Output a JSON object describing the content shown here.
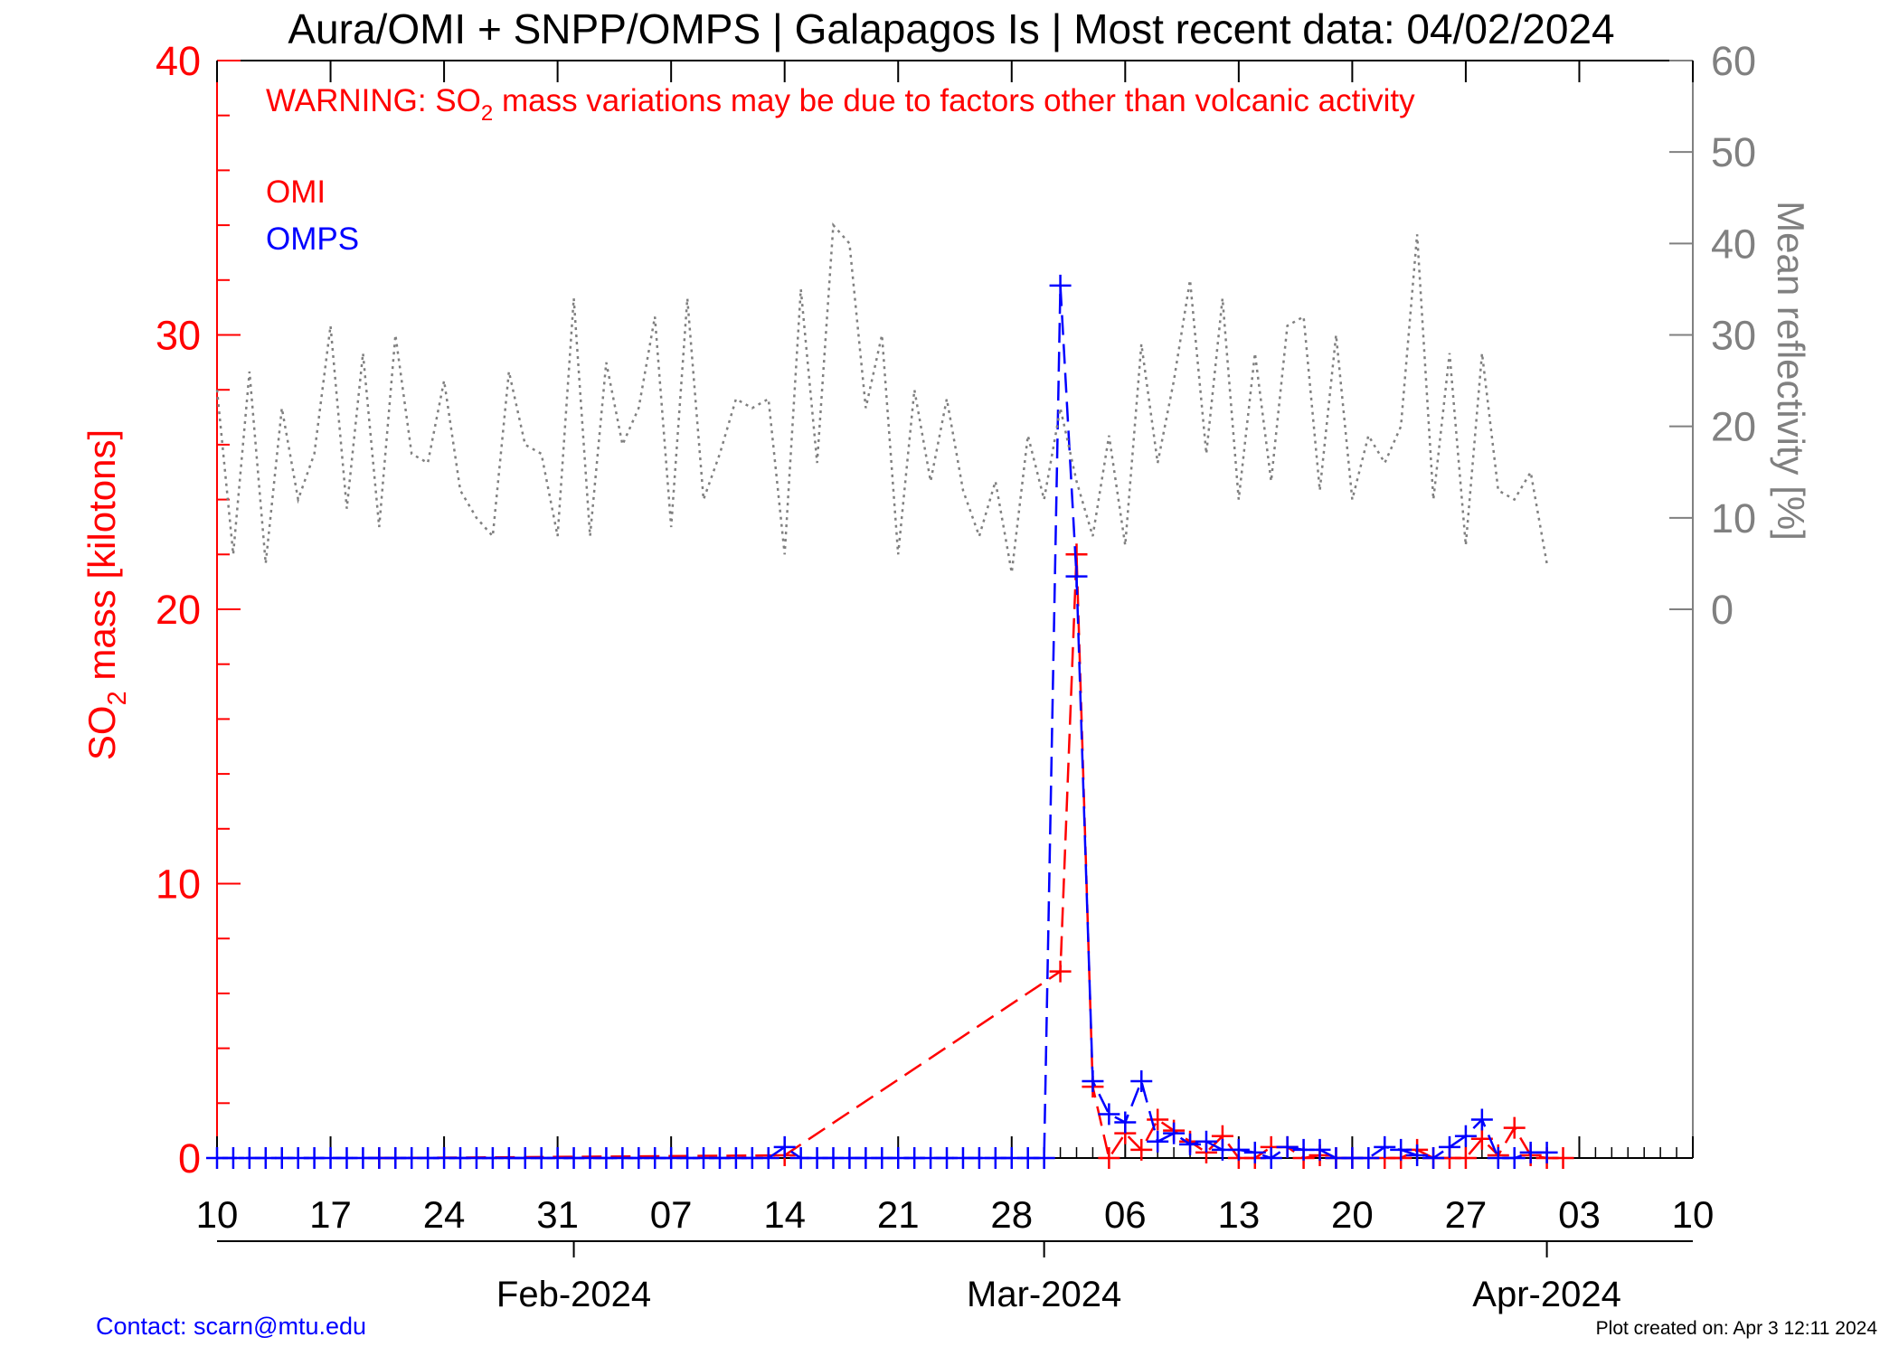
{
  "title": "Aura/OMI + SNPP/OMPS | Galapagos Is | Most recent data: 04/02/2024",
  "warning": {
    "prefix": "WARNING: SO",
    "subscript": "2",
    "suffix": " mass variations may be due to factors other than volcanic activity"
  },
  "footer": {
    "contact": "Contact: scarn@mtu.edu",
    "created": "Plot created on: Apr  3 12:11 2024"
  },
  "colors": {
    "omi": "#ff0000",
    "omps": "#0000ff",
    "reflectivity": "#808080",
    "axis": "#000000"
  },
  "chart_data": {
    "type": "line",
    "left_axis": {
      "label_prefix": "SO",
      "label_subscript": "2",
      "label_suffix": " mass [kilotons]",
      "range": [
        0,
        40
      ],
      "ticks": [
        "0",
        "10",
        "20",
        "30",
        "40"
      ],
      "color": "#ff0000"
    },
    "right_axis": {
      "label": "Mean reflectivity [%]",
      "range": [
        -60,
        60
      ],
      "ticks": [
        "0",
        "10",
        "20",
        "30",
        "40",
        "50",
        "60"
      ],
      "color": "#808080"
    },
    "x_axis": {
      "range": [
        "2024-01-10",
        "2024-04-10"
      ],
      "tick_labels": [
        "10",
        "17",
        "24",
        "31",
        "07",
        "14",
        "21",
        "28",
        "06",
        "13",
        "20",
        "27",
        "03",
        "10"
      ],
      "tick_dates": [
        "2024-01-10",
        "2024-01-17",
        "2024-01-24",
        "2024-01-31",
        "2024-02-07",
        "2024-02-14",
        "2024-02-21",
        "2024-02-28",
        "2024-03-06",
        "2024-03-13",
        "2024-03-20",
        "2024-03-27",
        "2024-04-03",
        "2024-04-10"
      ],
      "months": [
        {
          "label": "Feb-2024",
          "date": "2024-02-01"
        },
        {
          "label": "Mar-2024",
          "date": "2024-03-01"
        },
        {
          "label": "Apr-2024",
          "date": "2024-04-01"
        }
      ]
    },
    "legend": [
      "OMI",
      "OMPS"
    ],
    "legend_position": "top-left",
    "series": [
      {
        "name": "OMI",
        "axis": "left",
        "style": "dashed",
        "marker": "plus",
        "color": "#ff0000",
        "points": [
          {
            "date": "2024-01-20",
            "value": 0
          },
          {
            "date": "2024-01-21",
            "value": 0
          },
          {
            "date": "2024-02-14",
            "value": 0.1
          },
          {
            "date": "2024-03-02",
            "value": 6.8
          },
          {
            "date": "2024-03-03",
            "value": 22
          },
          {
            "date": "2024-03-04",
            "value": 2.6
          },
          {
            "date": "2024-03-05",
            "value": 0
          },
          {
            "date": "2024-03-06",
            "value": 0.9
          },
          {
            "date": "2024-03-07",
            "value": 0.3
          },
          {
            "date": "2024-03-08",
            "value": 1.4
          },
          {
            "date": "2024-03-09",
            "value": 1
          },
          {
            "date": "2024-03-10",
            "value": 0.6
          },
          {
            "date": "2024-03-11",
            "value": 0.2
          },
          {
            "date": "2024-03-12",
            "value": 0.8
          },
          {
            "date": "2024-03-13",
            "value": 0
          },
          {
            "date": "2024-03-14",
            "value": 0
          },
          {
            "date": "2024-03-15",
            "value": 0.4
          },
          {
            "date": "2024-03-16",
            "value": 0.4
          },
          {
            "date": "2024-03-17",
            "value": 0
          },
          {
            "date": "2024-03-18",
            "value": 0.1
          },
          {
            "date": "2024-03-19",
            "value": 0
          },
          {
            "date": "2024-03-20",
            "value": 0
          },
          {
            "date": "2024-03-22",
            "value": 0
          },
          {
            "date": "2024-03-23",
            "value": 0
          },
          {
            "date": "2024-03-24",
            "value": 0.3
          },
          {
            "date": "2024-03-25",
            "value": 0
          },
          {
            "date": "2024-03-26",
            "value": 0
          },
          {
            "date": "2024-03-27",
            "value": 0
          },
          {
            "date": "2024-03-28",
            "value": 0.7
          },
          {
            "date": "2024-03-29",
            "value": 0.1
          },
          {
            "date": "2024-03-30",
            "value": 1.1
          },
          {
            "date": "2024-03-31",
            "value": 0.1
          },
          {
            "date": "2024-04-01",
            "value": 0
          },
          {
            "date": "2024-04-02",
            "value": 0
          }
        ]
      },
      {
        "name": "OMPS",
        "axis": "left",
        "style": "dashed",
        "marker": "plus",
        "color": "#0000ff",
        "points": [
          {
            "date": "2024-01-10",
            "value": 0
          },
          {
            "date": "2024-01-11",
            "value": 0
          },
          {
            "date": "2024-01-12",
            "value": 0
          },
          {
            "date": "2024-01-13",
            "value": 0
          },
          {
            "date": "2024-01-14",
            "value": 0
          },
          {
            "date": "2024-01-15",
            "value": 0
          },
          {
            "date": "2024-01-16",
            "value": 0
          },
          {
            "date": "2024-01-17",
            "value": 0
          },
          {
            "date": "2024-01-18",
            "value": 0
          },
          {
            "date": "2024-01-19",
            "value": 0
          },
          {
            "date": "2024-01-20",
            "value": 0
          },
          {
            "date": "2024-01-21",
            "value": 0
          },
          {
            "date": "2024-01-22",
            "value": 0
          },
          {
            "date": "2024-01-23",
            "value": 0
          },
          {
            "date": "2024-01-24",
            "value": 0
          },
          {
            "date": "2024-01-25",
            "value": 0
          },
          {
            "date": "2024-01-26",
            "value": 0
          },
          {
            "date": "2024-01-27",
            "value": 0
          },
          {
            "date": "2024-01-28",
            "value": 0
          },
          {
            "date": "2024-01-29",
            "value": 0
          },
          {
            "date": "2024-01-30",
            "value": 0
          },
          {
            "date": "2024-01-31",
            "value": 0
          },
          {
            "date": "2024-02-01",
            "value": 0
          },
          {
            "date": "2024-02-02",
            "value": 0
          },
          {
            "date": "2024-02-03",
            "value": 0
          },
          {
            "date": "2024-02-04",
            "value": 0
          },
          {
            "date": "2024-02-05",
            "value": 0
          },
          {
            "date": "2024-02-06",
            "value": 0
          },
          {
            "date": "2024-02-07",
            "value": 0
          },
          {
            "date": "2024-02-08",
            "value": 0
          },
          {
            "date": "2024-02-09",
            "value": 0
          },
          {
            "date": "2024-02-10",
            "value": 0
          },
          {
            "date": "2024-02-11",
            "value": 0
          },
          {
            "date": "2024-02-12",
            "value": 0
          },
          {
            "date": "2024-02-13",
            "value": 0
          },
          {
            "date": "2024-02-14",
            "value": 0.4
          },
          {
            "date": "2024-02-15",
            "value": 0
          },
          {
            "date": "2024-02-16",
            "value": 0
          },
          {
            "date": "2024-02-17",
            "value": 0
          },
          {
            "date": "2024-02-18",
            "value": 0
          },
          {
            "date": "2024-02-19",
            "value": 0
          },
          {
            "date": "2024-02-20",
            "value": 0
          },
          {
            "date": "2024-02-21",
            "value": 0
          },
          {
            "date": "2024-02-22",
            "value": 0
          },
          {
            "date": "2024-02-23",
            "value": 0
          },
          {
            "date": "2024-02-24",
            "value": 0
          },
          {
            "date": "2024-02-25",
            "value": 0
          },
          {
            "date": "2024-02-26",
            "value": 0
          },
          {
            "date": "2024-02-27",
            "value": 0
          },
          {
            "date": "2024-02-28",
            "value": 0
          },
          {
            "date": "2024-02-29",
            "value": 0
          },
          {
            "date": "2024-03-01",
            "value": 0
          },
          {
            "date": "2024-03-02",
            "value": 31.8
          },
          {
            "date": "2024-03-03",
            "value": 21.2
          },
          {
            "date": "2024-03-04",
            "value": 2.8
          },
          {
            "date": "2024-03-05",
            "value": 1.6
          },
          {
            "date": "2024-03-06",
            "value": 1.3
          },
          {
            "date": "2024-03-07",
            "value": 2.8
          },
          {
            "date": "2024-03-08",
            "value": 0.6
          },
          {
            "date": "2024-03-09",
            "value": 0.9
          },
          {
            "date": "2024-03-10",
            "value": 0.5
          },
          {
            "date": "2024-03-11",
            "value": 0.6
          },
          {
            "date": "2024-03-12",
            "value": 0.3
          },
          {
            "date": "2024-03-13",
            "value": 0.3
          },
          {
            "date": "2024-03-14",
            "value": 0.2
          },
          {
            "date": "2024-03-15",
            "value": 0
          },
          {
            "date": "2024-03-16",
            "value": 0.4
          },
          {
            "date": "2024-03-17",
            "value": 0.3
          },
          {
            "date": "2024-03-18",
            "value": 0.3
          },
          {
            "date": "2024-03-19",
            "value": 0
          },
          {
            "date": "2024-03-20",
            "value": 0
          },
          {
            "date": "2024-03-21",
            "value": 0
          },
          {
            "date": "2024-03-22",
            "value": 0.4
          },
          {
            "date": "2024-03-23",
            "value": 0.3
          },
          {
            "date": "2024-03-24",
            "value": 0.1
          },
          {
            "date": "2024-03-25",
            "value": 0
          },
          {
            "date": "2024-03-26",
            "value": 0.4
          },
          {
            "date": "2024-03-27",
            "value": 0.8
          },
          {
            "date": "2024-03-28",
            "value": 1.4
          },
          {
            "date": "2024-03-29",
            "value": 0
          },
          {
            "date": "2024-03-30",
            "value": 0
          },
          {
            "date": "2024-03-31",
            "value": 0.2
          },
          {
            "date": "2024-04-01",
            "value": 0.2
          }
        ]
      },
      {
        "name": "Mean reflectivity",
        "axis": "right",
        "style": "dotted",
        "color": "#808080",
        "points": [
          {
            "date": "2024-01-10",
            "value": 24
          },
          {
            "date": "2024-01-11",
            "value": 6
          },
          {
            "date": "2024-01-12",
            "value": 26
          },
          {
            "date": "2024-01-13",
            "value": 5
          },
          {
            "date": "2024-01-14",
            "value": 22
          },
          {
            "date": "2024-01-15",
            "value": 12
          },
          {
            "date": "2024-01-16",
            "value": 17
          },
          {
            "date": "2024-01-17",
            "value": 31
          },
          {
            "date": "2024-01-18",
            "value": 11
          },
          {
            "date": "2024-01-19",
            "value": 28
          },
          {
            "date": "2024-01-20",
            "value": 9
          },
          {
            "date": "2024-01-21",
            "value": 30
          },
          {
            "date": "2024-01-22",
            "value": 17
          },
          {
            "date": "2024-01-23",
            "value": 16
          },
          {
            "date": "2024-01-24",
            "value": 25
          },
          {
            "date": "2024-01-25",
            "value": 13
          },
          {
            "date": "2024-01-26",
            "value": 10
          },
          {
            "date": "2024-01-27",
            "value": 8
          },
          {
            "date": "2024-01-28",
            "value": 26
          },
          {
            "date": "2024-01-29",
            "value": 18
          },
          {
            "date": "2024-01-30",
            "value": 17
          },
          {
            "date": "2024-01-31",
            "value": 8
          },
          {
            "date": "2024-02-01",
            "value": 34
          },
          {
            "date": "2024-02-02",
            "value": 8
          },
          {
            "date": "2024-02-03",
            "value": 27
          },
          {
            "date": "2024-02-04",
            "value": 18
          },
          {
            "date": "2024-02-05",
            "value": 22
          },
          {
            "date": "2024-02-06",
            "value": 32
          },
          {
            "date": "2024-02-07",
            "value": 9
          },
          {
            "date": "2024-02-08",
            "value": 34
          },
          {
            "date": "2024-02-09",
            "value": 12
          },
          {
            "date": "2024-02-10",
            "value": 17
          },
          {
            "date": "2024-02-11",
            "value": 23
          },
          {
            "date": "2024-02-12",
            "value": 22
          },
          {
            "date": "2024-02-13",
            "value": 23
          },
          {
            "date": "2024-02-14",
            "value": 6
          },
          {
            "date": "2024-02-15",
            "value": 35
          },
          {
            "date": "2024-02-16",
            "value": 16
          },
          {
            "date": "2024-02-17",
            "value": 42
          },
          {
            "date": "2024-02-18",
            "value": 40
          },
          {
            "date": "2024-02-19",
            "value": 22
          },
          {
            "date": "2024-02-20",
            "value": 30
          },
          {
            "date": "2024-02-21",
            "value": 6
          },
          {
            "date": "2024-02-22",
            "value": 24
          },
          {
            "date": "2024-02-23",
            "value": 14
          },
          {
            "date": "2024-02-24",
            "value": 23
          },
          {
            "date": "2024-02-25",
            "value": 13
          },
          {
            "date": "2024-02-26",
            "value": 8
          },
          {
            "date": "2024-02-27",
            "value": 14
          },
          {
            "date": "2024-02-28",
            "value": 4
          },
          {
            "date": "2024-02-29",
            "value": 19
          },
          {
            "date": "2024-03-01",
            "value": 12
          },
          {
            "date": "2024-03-02",
            "value": 22
          },
          {
            "date": "2024-03-03",
            "value": 14
          },
          {
            "date": "2024-03-04",
            "value": 8
          },
          {
            "date": "2024-03-05",
            "value": 19
          },
          {
            "date": "2024-03-06",
            "value": 7
          },
          {
            "date": "2024-03-07",
            "value": 29
          },
          {
            "date": "2024-03-08",
            "value": 16
          },
          {
            "date": "2024-03-09",
            "value": 25
          },
          {
            "date": "2024-03-10",
            "value": 36
          },
          {
            "date": "2024-03-11",
            "value": 17
          },
          {
            "date": "2024-03-12",
            "value": 34
          },
          {
            "date": "2024-03-13",
            "value": 12
          },
          {
            "date": "2024-03-14",
            "value": 28
          },
          {
            "date": "2024-03-15",
            "value": 14
          },
          {
            "date": "2024-03-16",
            "value": 31
          },
          {
            "date": "2024-03-17",
            "value": 32
          },
          {
            "date": "2024-03-18",
            "value": 13
          },
          {
            "date": "2024-03-19",
            "value": 30
          },
          {
            "date": "2024-03-20",
            "value": 12
          },
          {
            "date": "2024-03-21",
            "value": 19
          },
          {
            "date": "2024-03-22",
            "value": 16
          },
          {
            "date": "2024-03-23",
            "value": 20
          },
          {
            "date": "2024-03-24",
            "value": 41
          },
          {
            "date": "2024-03-25",
            "value": 12
          },
          {
            "date": "2024-03-26",
            "value": 28
          },
          {
            "date": "2024-03-27",
            "value": 7
          },
          {
            "date": "2024-03-28",
            "value": 28
          },
          {
            "date": "2024-03-29",
            "value": 13
          },
          {
            "date": "2024-03-30",
            "value": 12
          },
          {
            "date": "2024-03-31",
            "value": 15
          },
          {
            "date": "2024-04-01",
            "value": 5
          }
        ]
      }
    ]
  }
}
